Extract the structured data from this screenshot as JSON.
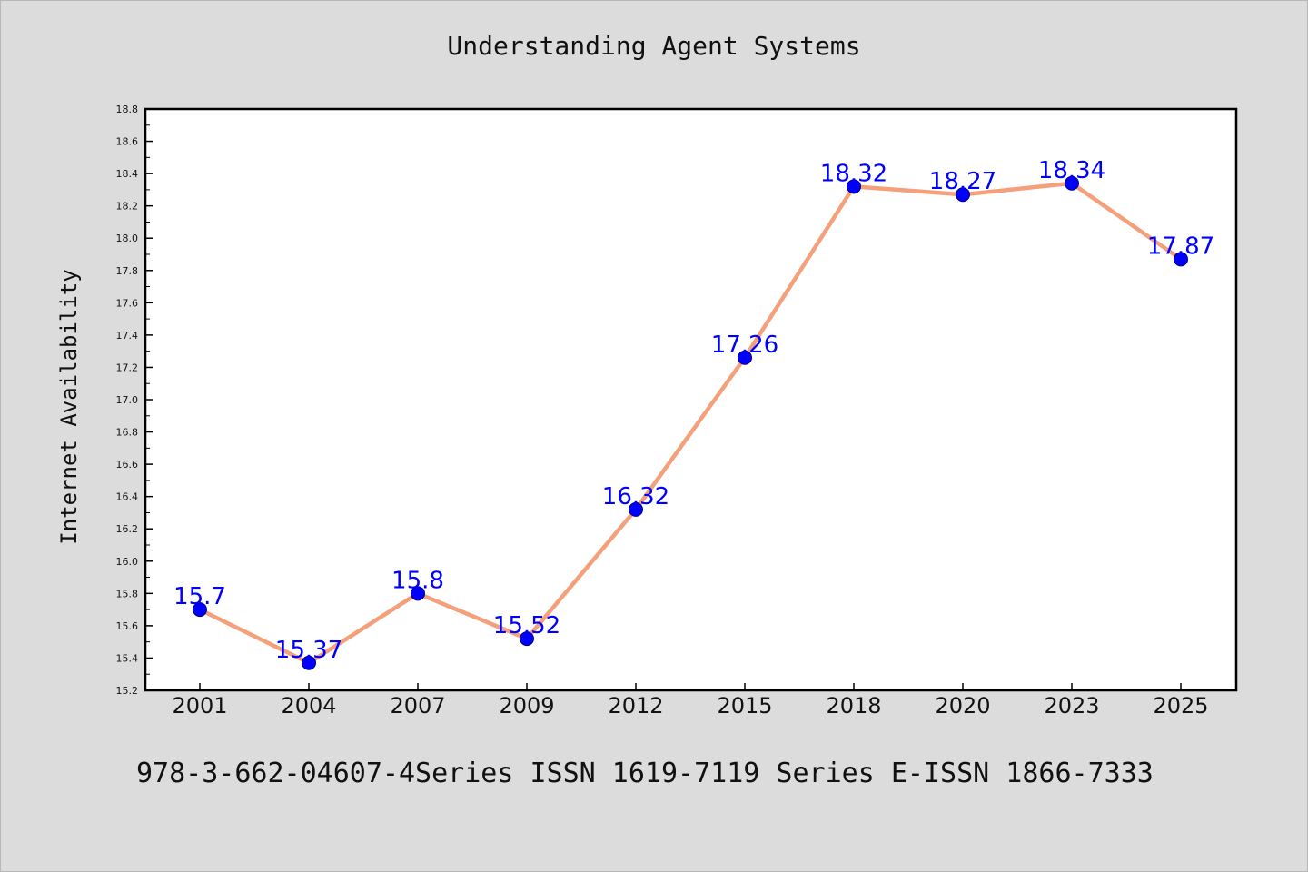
{
  "footer": "978-3-662-04607-4Series ISSN 1619-7119 Series E-ISSN 1866-7333",
  "chart_data": {
    "type": "line",
    "title": "Understanding Agent Systems",
    "xlabel": "",
    "ylabel": "Internet Availability",
    "categories": [
      "2001",
      "2004",
      "2007",
      "2009",
      "2012",
      "2015",
      "2018",
      "2020",
      "2023",
      "2025"
    ],
    "series": [
      {
        "values": [
          15.7,
          15.37,
          15.8,
          15.52,
          16.32,
          17.26,
          18.32,
          18.27,
          18.34,
          17.87
        ],
        "labels": [
          "15.7",
          "15.37",
          "15.8",
          "15.52",
          "16.32",
          "17.26",
          "18.32",
          "18.27",
          "18.34",
          "17.87"
        ],
        "line_color": "#f4a07a",
        "marker_color": "#0000ff"
      }
    ],
    "ylim": [
      15.2,
      18.8
    ],
    "yticks": [
      "15.2",
      "15.4",
      "15.6",
      "15.8",
      "16.0",
      "16.2",
      "16.4",
      "16.6",
      "16.8",
      "17.0",
      "17.2",
      "17.4",
      "17.6",
      "17.8",
      "18.0",
      "18.2",
      "18.4",
      "18.6",
      "18.8"
    ],
    "grid": false,
    "legend": "none"
  }
}
